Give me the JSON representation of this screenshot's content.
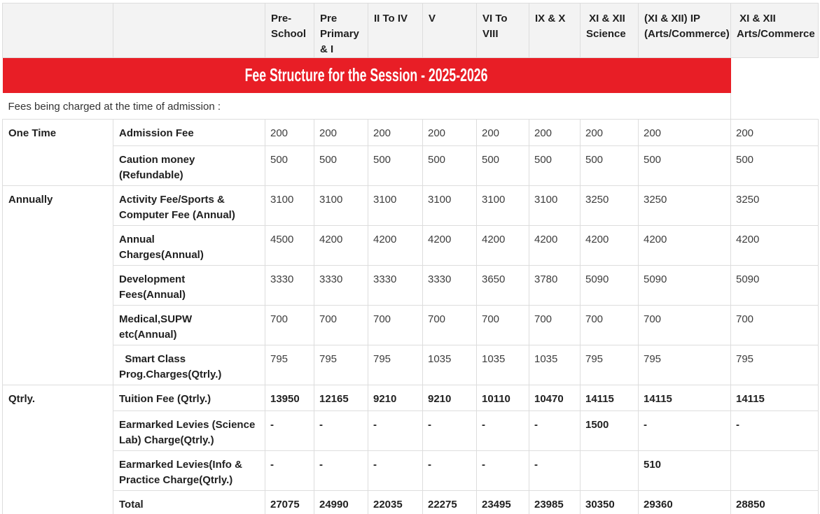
{
  "banner": {
    "title": "Fee Structure for the Session - 2025-2026",
    "bg_color": "#e81e26",
    "text_color": "#ffffff"
  },
  "subtitle": "Fees being charged at the time of admission :",
  "table": {
    "columns": [
      "Pre-\nSchool",
      "Pre\nPrimary\n& I",
      "II To IV",
      "V",
      "VI To\nVIII",
      "IX & X",
      " XI & XII\nScience",
      "(XI & XII) IP\n(Arts/Commerce)",
      " XI & XII\nArts/Commerce"
    ],
    "rows": [
      {
        "group": "One Time",
        "group_rowspan": 2,
        "label": "Admission Fee",
        "values": [
          "200",
          "200",
          "200",
          "200",
          "200",
          "200",
          "200",
          "200",
          "200"
        ],
        "bold": false
      },
      {
        "label": "Caution money\n(Refundable)",
        "values": [
          "500",
          "500",
          "500",
          "500",
          "500",
          "500",
          "500",
          "500",
          "500"
        ],
        "bold": false
      },
      {
        "group": "Annually",
        "group_rowspan": 5,
        "label": "Activity Fee/Sports &\nComputer Fee (Annual)",
        "values": [
          "3100",
          "3100",
          "3100",
          "3100",
          "3100",
          "3100",
          "3250",
          "3250",
          "3250"
        ],
        "bold": false
      },
      {
        "label": "Annual\nCharges(Annual)",
        "values": [
          "4500",
          "4200",
          "4200",
          "4200",
          "4200",
          "4200",
          "4200",
          "4200",
          "4200"
        ],
        "bold": false
      },
      {
        "label": "Development\nFees(Annual)",
        "values": [
          "3330",
          "3330",
          "3330",
          "3330",
          "3650",
          "3780",
          "5090",
          "5090",
          "5090"
        ],
        "bold": false
      },
      {
        "label": "Medical,SUPW\netc(Annual)",
        "values": [
          "700",
          "700",
          "700",
          "700",
          "700",
          "700",
          "700",
          "700",
          "700"
        ],
        "bold": false
      },
      {
        "label": "  Smart Class\nProg.Charges(Qtrly.)",
        "values": [
          "795",
          "795",
          "795",
          "1035",
          "1035",
          "1035",
          "795",
          "795",
          "795"
        ],
        "bold": false
      },
      {
        "group": "Qtrly.",
        "group_rowspan": 4,
        "label": "Tuition Fee (Qtrly.)",
        "values": [
          "13950",
          "12165",
          "9210",
          "9210",
          "10110",
          "10470",
          "14115",
          "14115",
          "14115"
        ],
        "bold": true
      },
      {
        "label": "Earmarked Levies (Science\nLab) Charge(Qtrly.)",
        "values": [
          "-",
          "-",
          "-",
          "-",
          "-",
          "-",
          "1500",
          "-",
          "-"
        ],
        "bold": true
      },
      {
        "label": "Earmarked Levies(Info &\nPractice Charge(Qtrly.)",
        "values": [
          "-",
          "-",
          "-",
          "-",
          "-",
          "-",
          "",
          "510",
          ""
        ],
        "bold": true
      },
      {
        "label": "Total",
        "values": [
          "27075",
          "24990",
          "22035",
          "22275",
          "23495",
          "23985",
          "30350",
          "29360",
          "28850"
        ],
        "bold": true
      }
    ]
  }
}
